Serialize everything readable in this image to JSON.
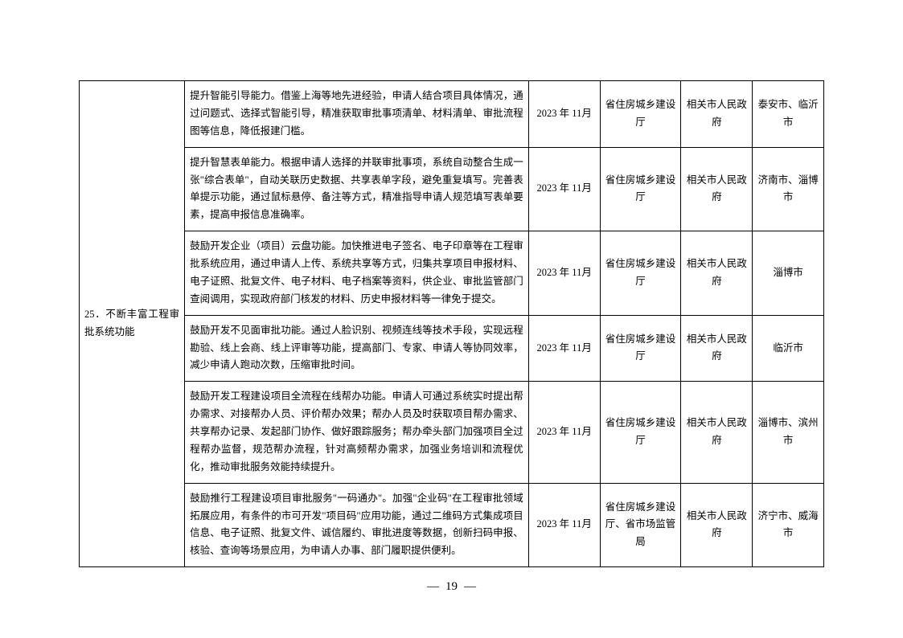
{
  "category": "25．不断丰富工程审批系统功能",
  "rows": [
    {
      "desc": "提升智能引导能力。借鉴上海等地先进经验，申请人结合项目具体情况，通过问题式、选择式智能引导，精准获取审批事项清单、材料清单、审批流程图等信息，降低报建门槛。",
      "date": "2023 年 11月",
      "dept1": "省住房城乡建设厅",
      "dept2": "相关市人民政府",
      "city": "泰安市、临沂市"
    },
    {
      "desc": "提升智慧表单能力。根据申请人选择的并联审批事项，系统自动整合生成一张\"综合表单\"，自动关联历史数据、共享表单字段，避免重复填写。完善表单提示功能，通过鼠标悬停、备注等方式，精准指导申请人规范填写表单要素，提高申报信息准确率。",
      "date": "2023 年 11月",
      "dept1": "省住房城乡建设厅",
      "dept2": "相关市人民政府",
      "city": "济南市、淄博市"
    },
    {
      "desc": "鼓励开发企业（项目）云盘功能。加快推进电子签名、电子印章等在工程审批系统应用，通过申请人上传、系统共享等方式，归集共享项目申报材料、电子证照、批复文件、电子材料、电子档案等资料，供企业、审批监管部门查阅调用，实现政府部门核发的材料、历史申报材料等一律免于提交。",
      "date": "2023 年 11月",
      "dept1": "省住房城乡建设厅",
      "dept2": "相关市人民政府",
      "city": "淄博市"
    },
    {
      "desc": "鼓励开发不见面审批功能。通过人脸识别、视频连线等技术手段，实现远程勘验、线上会商、线上评审等功能，提高部门、专家、申请人等协同效率，减少申请人跑动次数，压缩审批时间。",
      "date": "2023 年 11月",
      "dept1": "省住房城乡建设厅",
      "dept2": "相关市人民政府",
      "city": "临沂市"
    },
    {
      "desc": "鼓励开发工程建设项目全流程在线帮办功能。申请人可通过系统实时提出帮办需求、对接帮办人员、评价帮办效果；帮办人员及时获取项目帮办需求、共享帮办记录、发起部门协作、做好跟踪服务；帮办牵头部门加强项目全过程帮办监督，规范帮办流程，针对高频帮办需求，加强业务培训和流程优化，推动审批服务效能持续提升。",
      "date": "2023 年 11月",
      "dept1": "省住房城乡建设厅",
      "dept2": "相关市人民政府",
      "city": "淄博市、滨州市"
    },
    {
      "desc": "鼓励推行工程建设项目审批服务\"一码通办\"。加强\"企业码\"在工程审批领域拓展应用，有条件的市可开发\"项目码\"应用功能，通过二维码方式集成项目信息、电子证照、批复文件、诚信履约、审批进度等数据，创新扫码申报、核验、查询等场景应用，为申请人办事、部门履职提供便利。",
      "date": "2023 年 11月",
      "dept1": "省住房城乡建设厅、省市场监管局",
      "dept2": "相关市人民政府",
      "city": "济宁市、威海市"
    }
  ],
  "pageNumber": "19"
}
